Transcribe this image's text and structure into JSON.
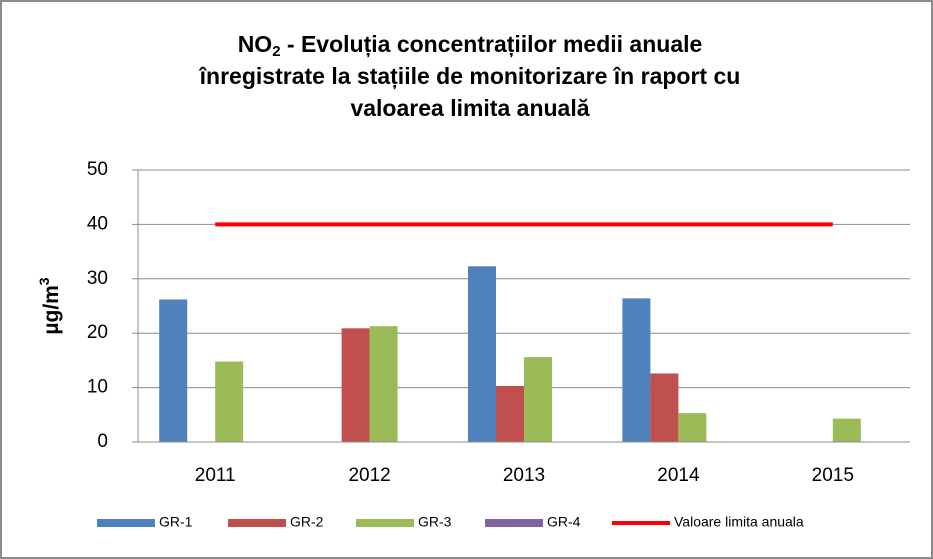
{
  "chart_data": {
    "type": "bar",
    "title": [
      "NO",
      "2",
      " - Evoluția concentrațiilor medii anuale",
      "înregistrate la stațiile de monitorizare în raport cu",
      "valoarea limita anuală"
    ],
    "ylabel": [
      "µg/m",
      "3"
    ],
    "categories": [
      "2011",
      "2012",
      "2013",
      "2014",
      "2015"
    ],
    "series": [
      {
        "name": "GR-1",
        "color": "#4f81bd",
        "values": [
          26.2,
          null,
          32.3,
          26.4,
          null
        ]
      },
      {
        "name": "GR-2",
        "color": "#c0504d",
        "values": [
          null,
          20.9,
          10.3,
          12.6,
          null
        ]
      },
      {
        "name": "GR-3",
        "color": "#9bbb59",
        "values": [
          14.8,
          21.3,
          15.6,
          5.3,
          4.3
        ]
      },
      {
        "name": "GR-4",
        "color": "#8064a2",
        "values": [
          null,
          null,
          null,
          null,
          null
        ]
      },
      {
        "name": "Valoare limita anuala",
        "color": "#ff0000",
        "type": "line",
        "values": [
          40,
          40,
          40,
          40,
          40
        ]
      }
    ],
    "ylim": [
      0,
      50
    ],
    "yticks": [
      0,
      10,
      20,
      30,
      40,
      50
    ],
    "grid": true,
    "legend": "bottom"
  }
}
